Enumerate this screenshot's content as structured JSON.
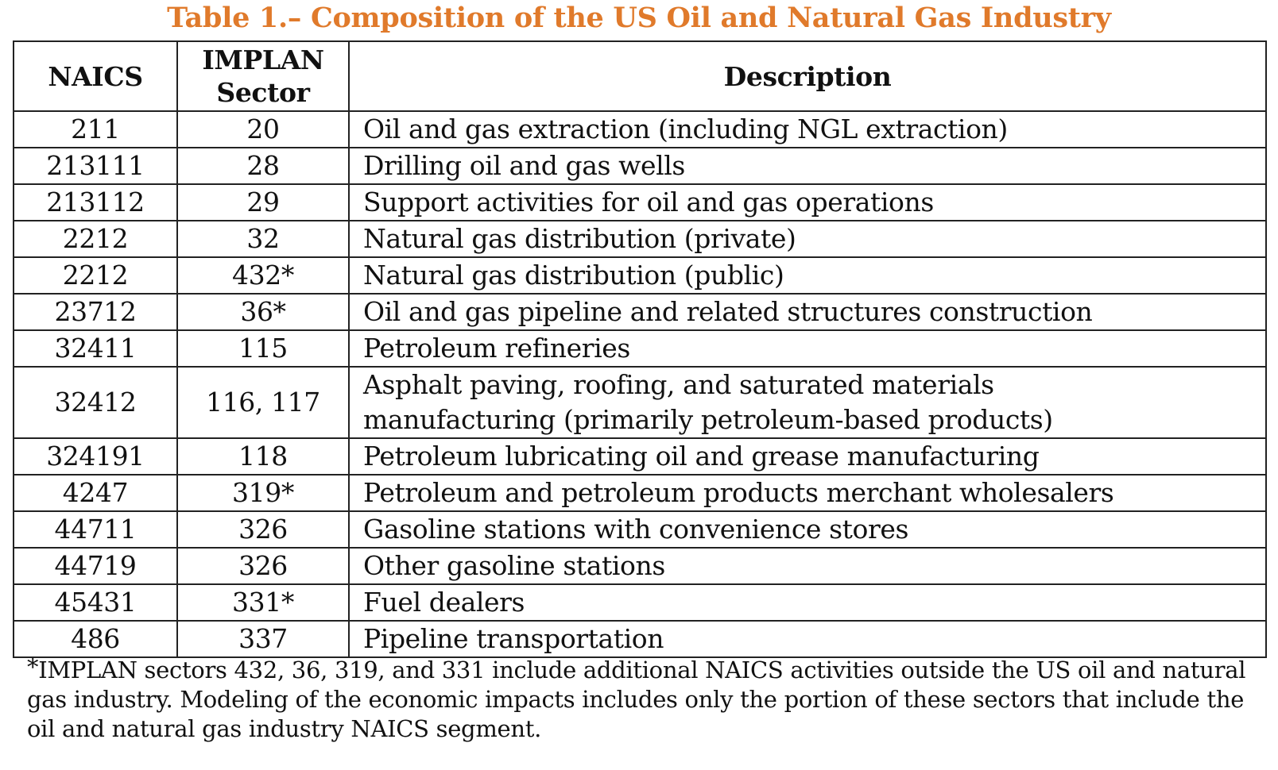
{
  "title": "Table 1.– Composition of the US Oil and Natural Gas Industry",
  "table": {
    "headers": {
      "naics": "NAICS",
      "implan_line1": "IMPLAN",
      "implan_line2": "Sector",
      "description": "Description"
    },
    "rows": [
      {
        "naics": "211",
        "implan": "20",
        "description": "Oil and gas extraction (including NGL extraction)"
      },
      {
        "naics": "213111",
        "implan": "28",
        "description": "Drilling oil and gas wells"
      },
      {
        "naics": "213112",
        "implan": "29",
        "description": "Support activities for oil and gas operations"
      },
      {
        "naics": "2212",
        "implan": "32",
        "description": "Natural gas distribution (private)"
      },
      {
        "naics": "2212",
        "implan": "432*",
        "description": "Natural gas distribution (public)"
      },
      {
        "naics": "23712",
        "implan": "36*",
        "description": "Oil and gas pipeline and related structures construction"
      },
      {
        "naics": "32411",
        "implan": "115",
        "description": "Petroleum refineries"
      },
      {
        "naics": "32412",
        "implan": "116, 117",
        "description_line1": "Asphalt paving, roofing, and saturated materials",
        "description_line2": "manufacturing (primarily petroleum-based products)"
      },
      {
        "naics": "324191",
        "implan": "118",
        "description": "Petroleum lubricating oil and grease manufacturing"
      },
      {
        "naics": "4247",
        "implan": "319*",
        "description": "Petroleum and petroleum products merchant wholesalers"
      },
      {
        "naics": "44711",
        "implan": "326",
        "description": "Gasoline stations with convenience stores"
      },
      {
        "naics": "44719",
        "implan": "326",
        "description": "Other gasoline stations"
      },
      {
        "naics": "45431",
        "implan": "331*",
        "description": "Fuel dealers"
      },
      {
        "naics": "486",
        "implan": "337",
        "description": "Pipeline transportation"
      }
    ]
  },
  "footnote": {
    "star": "*",
    "line1": "IMPLAN sectors 432, 36, 319, and 331 include additional NAICS activities outside the US oil and natural",
    "line2": "gas industry.  Modeling of the economic impacts includes only the portion of these sectors that include the",
    "line3": "oil and natural gas industry NAICS segment."
  },
  "colors": {
    "title": "#e07a2b",
    "text": "#111111",
    "border": "#222222"
  }
}
